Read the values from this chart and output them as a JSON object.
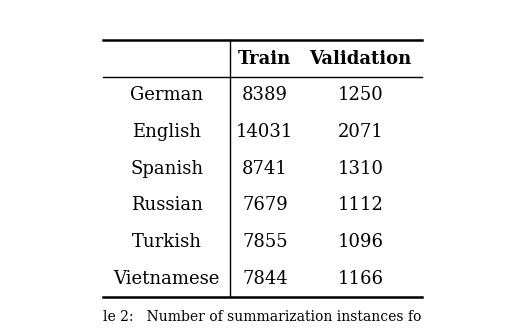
{
  "languages": [
    "German",
    "English",
    "Spanish",
    "Russian",
    "Turkish",
    "Vietnamese"
  ],
  "train": [
    8389,
    14031,
    8741,
    7679,
    7855,
    7844
  ],
  "validation": [
    1250,
    2071,
    1310,
    1112,
    1096,
    1166
  ],
  "col_headers": [
    "",
    "Train",
    "Validation"
  ],
  "caption": "le 2:   Number of summarization instances fo",
  "bg_color": "#ffffff",
  "text_color": "#000000",
  "font_size": 13,
  "header_font_size": 13
}
